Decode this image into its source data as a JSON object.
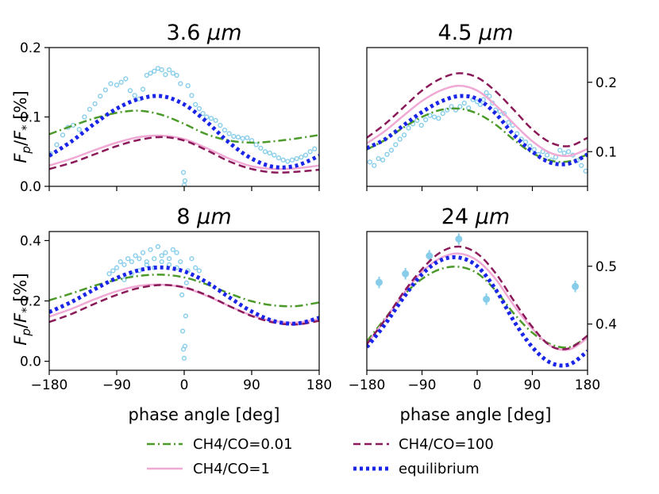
{
  "chart_data": [
    {
      "type": "line",
      "title": "3.6 μm",
      "title_number": "3.6",
      "title_unit": "μm",
      "xlabel": "",
      "ylabel": "F_p/F_* [%]",
      "xlim": [
        -180,
        180
      ],
      "ylim": [
        0.0,
        0.2
      ],
      "xticks": [
        -180,
        -90,
        0,
        90,
        180
      ],
      "yticks": [
        0.0,
        0.1,
        0.2
      ],
      "ytick_labels": [
        "0.0",
        "0.1",
        "0.2"
      ],
      "yaxis_side": "left",
      "series": [
        {
          "name": "CH4/CO=0.01",
          "x": [
            -180,
            -150,
            -120,
            -90,
            -60,
            -30,
            0,
            30,
            60,
            90,
            120,
            150,
            180
          ],
          "y": [
            0.075,
            0.087,
            0.098,
            0.106,
            0.109,
            0.103,
            0.09,
            0.075,
            0.066,
            0.063,
            0.065,
            0.069,
            0.074
          ]
        },
        {
          "name": "CH4/CO=1",
          "x": [
            -180,
            -150,
            -120,
            -90,
            -60,
            -30,
            0,
            30,
            60,
            90,
            120,
            150,
            180
          ],
          "y": [
            0.03,
            0.04,
            0.052,
            0.063,
            0.071,
            0.073,
            0.068,
            0.055,
            0.04,
            0.029,
            0.025,
            0.026,
            0.03
          ]
        },
        {
          "name": "CH4/CO=100",
          "x": [
            -180,
            -150,
            -120,
            -90,
            -60,
            -30,
            0,
            30,
            60,
            90,
            120,
            150,
            180
          ],
          "y": [
            0.025,
            0.034,
            0.046,
            0.058,
            0.067,
            0.071,
            0.066,
            0.052,
            0.036,
            0.025,
            0.02,
            0.021,
            0.024
          ]
        },
        {
          "name": "equilibrium",
          "x": [
            -180,
            -150,
            -120,
            -90,
            -60,
            -30,
            0,
            30,
            60,
            90,
            120,
            150,
            180
          ],
          "y": [
            0.044,
            0.065,
            0.09,
            0.112,
            0.126,
            0.13,
            0.118,
            0.093,
            0.063,
            0.04,
            0.028,
            0.03,
            0.044
          ]
        }
      ],
      "observations": {
        "x": [
          -178,
          -170,
          -162,
          -155,
          -148,
          -140,
          -133,
          -126,
          -119,
          -112,
          -105,
          -98,
          -90,
          -84,
          -78,
          -72,
          -66,
          -60,
          -55,
          -50,
          -45,
          -40,
          -35,
          -30,
          -25,
          -20,
          -15,
          -10,
          -5,
          0,
          -1,
          1,
          5,
          10,
          15,
          20,
          25,
          30,
          36,
          42,
          48,
          54,
          60,
          66,
          72,
          78,
          84,
          90,
          96,
          102,
          108,
          114,
          120,
          126,
          132,
          138,
          144,
          150,
          156,
          162,
          168,
          174
        ],
        "y": [
          0.047,
          0.06,
          0.074,
          0.085,
          0.088,
          0.082,
          0.1,
          0.111,
          0.119,
          0.13,
          0.139,
          0.148,
          0.146,
          0.15,
          0.155,
          0.138,
          0.131,
          0.126,
          0.14,
          0.16,
          0.163,
          0.166,
          0.17,
          0.168,
          0.161,
          0.168,
          0.163,
          0.16,
          0.148,
          0.002,
          0.02,
          0.008,
          0.145,
          0.131,
          0.118,
          0.112,
          0.105,
          0.1,
          0.098,
          0.095,
          0.088,
          0.081,
          0.076,
          0.072,
          0.071,
          0.069,
          0.07,
          0.066,
          0.06,
          0.055,
          0.05,
          0.048,
          0.045,
          0.041,
          0.038,
          0.036,
          0.038,
          0.04,
          0.042,
          0.045,
          0.05,
          0.054
        ]
      }
    },
    {
      "type": "line",
      "title": "4.5 μm",
      "title_number": "4.5",
      "title_unit": "μm",
      "xlabel": "phase angle [deg]",
      "ylabel": "",
      "xlim": [
        -180,
        180
      ],
      "ylim": [
        0.05,
        0.25
      ],
      "xticks": [
        -180,
        -90,
        0,
        90,
        180
      ],
      "yticks": [
        0.1,
        0.2
      ],
      "ytick_labels": [
        "0.1",
        "0.2"
      ],
      "yaxis_side": "right",
      "series": [
        {
          "name": "CH4/CO=0.01",
          "x": [
            -180,
            -150,
            -120,
            -90,
            -60,
            -30,
            0,
            30,
            60,
            90,
            120,
            150,
            180
          ],
          "y": [
            0.103,
            0.117,
            0.135,
            0.15,
            0.16,
            0.162,
            0.155,
            0.139,
            0.117,
            0.098,
            0.087,
            0.086,
            0.096
          ]
        },
        {
          "name": "CH4/CO=1",
          "x": [
            -180,
            -150,
            -120,
            -90,
            -60,
            -30,
            0,
            30,
            60,
            90,
            120,
            150,
            180
          ],
          "y": [
            0.112,
            0.13,
            0.152,
            0.173,
            0.188,
            0.195,
            0.188,
            0.167,
            0.14,
            0.115,
            0.098,
            0.094,
            0.104
          ]
        },
        {
          "name": "CH4/CO=100",
          "x": [
            -180,
            -150,
            -120,
            -90,
            -60,
            -30,
            0,
            30,
            60,
            90,
            120,
            150,
            180
          ],
          "y": [
            0.12,
            0.14,
            0.164,
            0.188,
            0.205,
            0.213,
            0.207,
            0.187,
            0.16,
            0.132,
            0.113,
            0.108,
            0.12
          ]
        },
        {
          "name": "equilibrium",
          "x": [
            -180,
            -150,
            -120,
            -90,
            -60,
            -30,
            0,
            30,
            60,
            90,
            120,
            150,
            180
          ],
          "y": [
            0.105,
            0.118,
            0.138,
            0.157,
            0.172,
            0.18,
            0.176,
            0.155,
            0.124,
            0.1,
            0.084,
            0.083,
            0.096
          ]
        }
      ],
      "observations": {
        "x": [
          -175,
          -168,
          -161,
          -154,
          -147,
          -140,
          -133,
          -126,
          -119,
          -112,
          -105,
          -98,
          -91,
          -84,
          -77,
          -70,
          -63,
          -56,
          -49,
          -42,
          -35,
          -28,
          -21,
          -14,
          -7,
          0,
          5,
          10,
          15,
          20,
          25,
          30,
          37,
          44,
          51,
          58,
          65,
          72,
          79,
          86,
          93,
          100,
          107,
          114,
          121,
          128,
          135,
          142,
          149,
          156,
          163,
          170,
          177
        ],
        "y": [
          0.085,
          0.08,
          0.09,
          0.088,
          0.096,
          0.102,
          0.11,
          0.118,
          0.124,
          0.134,
          0.14,
          0.145,
          0.138,
          0.146,
          0.152,
          0.15,
          0.148,
          0.155,
          0.16,
          0.165,
          0.16,
          0.165,
          0.17,
          0.163,
          0.175,
          0.172,
          0.168,
          0.175,
          0.185,
          0.18,
          0.17,
          0.16,
          0.158,
          0.155,
          0.142,
          0.138,
          0.126,
          0.118,
          0.114,
          0.108,
          0.103,
          0.096,
          0.1,
          0.095,
          0.088,
          0.092,
          0.102,
          0.098,
          0.1,
          0.095,
          0.087,
          0.08,
          0.072
        ]
      }
    },
    {
      "type": "line",
      "title": "8 μm",
      "title_number": "8",
      "title_unit": "μm",
      "xlabel": "phase angle [deg]",
      "ylabel": "F_p/F_* [%]",
      "xlim": [
        -180,
        180
      ],
      "ylim": [
        -0.03,
        0.43
      ],
      "xticks": [
        -180,
        -90,
        0,
        90,
        180
      ],
      "yticks": [
        0.0,
        0.2,
        0.4
      ],
      "ytick_labels": [
        "0.0",
        "0.2",
        "0.4"
      ],
      "yaxis_side": "left",
      "series": [
        {
          "name": "CH4/CO=0.01",
          "x": [
            -180,
            -150,
            -120,
            -90,
            -60,
            -30,
            0,
            30,
            60,
            90,
            120,
            150,
            180
          ],
          "y": [
            0.202,
            0.225,
            0.25,
            0.27,
            0.283,
            0.287,
            0.278,
            0.255,
            0.225,
            0.199,
            0.185,
            0.183,
            0.195
          ]
        },
        {
          "name": "CH4/CO=1",
          "x": [
            -180,
            -150,
            -120,
            -90,
            -60,
            -30,
            0,
            30,
            60,
            90,
            120,
            150,
            180
          ],
          "y": [
            0.148,
            0.174,
            0.205,
            0.232,
            0.25,
            0.254,
            0.244,
            0.217,
            0.183,
            0.152,
            0.133,
            0.128,
            0.14
          ]
        },
        {
          "name": "CH4/CO=100",
          "x": [
            -180,
            -150,
            -120,
            -90,
            -60,
            -30,
            0,
            30,
            60,
            90,
            120,
            150,
            180
          ],
          "y": [
            0.13,
            0.157,
            0.19,
            0.22,
            0.243,
            0.253,
            0.245,
            0.219,
            0.183,
            0.15,
            0.128,
            0.122,
            0.134
          ]
        },
        {
          "name": "equilibrium",
          "x": [
            -180,
            -150,
            -120,
            -90,
            -60,
            -30,
            0,
            30,
            60,
            90,
            120,
            150,
            180
          ],
          "y": [
            0.163,
            0.197,
            0.238,
            0.276,
            0.302,
            0.311,
            0.298,
            0.262,
            0.212,
            0.165,
            0.133,
            0.125,
            0.144
          ]
        }
      ],
      "observations": {
        "x": [
          -100,
          -95,
          -90,
          -85,
          -80,
          -75,
          -70,
          -65,
          -60,
          -55,
          -50,
          -45,
          -40,
          -35,
          -30,
          -25,
          -20,
          -15,
          -10,
          -5,
          -3,
          -2,
          -1,
          0,
          1,
          2,
          3,
          -80,
          -70,
          -60,
          -50,
          -40,
          -30,
          -20,
          -10,
          5,
          10,
          15,
          20
        ],
        "y": [
          0.29,
          0.3,
          0.31,
          0.33,
          0.32,
          0.34,
          0.33,
          0.35,
          0.34,
          0.36,
          0.33,
          0.37,
          0.34,
          0.38,
          0.35,
          0.36,
          0.34,
          0.37,
          0.36,
          0.33,
          0.22,
          0.1,
          0.04,
          0.01,
          0.05,
          0.15,
          0.26,
          0.27,
          0.29,
          0.3,
          0.32,
          0.31,
          0.33,
          0.32,
          0.31,
          0.3,
          0.34,
          0.31,
          0.3
        ]
      }
    },
    {
      "type": "line",
      "title": "24 μm",
      "title_number": "24",
      "title_unit": "μm",
      "xlabel": "phase angle [deg]",
      "ylabel": "",
      "xlim": [
        -180,
        180
      ],
      "ylim": [
        0.32,
        0.56
      ],
      "xticks": [
        -180,
        -90,
        0,
        90,
        180
      ],
      "yticks": [
        0.4,
        0.5
      ],
      "ytick_labels": [
        "0.4",
        "0.5"
      ],
      "yaxis_side": "right",
      "series": [
        {
          "name": "CH4/CO=0.01",
          "x": [
            -180,
            -150,
            -120,
            -90,
            -60,
            -30,
            0,
            30,
            60,
            90,
            120,
            150,
            180
          ],
          "y": [
            0.37,
            0.41,
            0.45,
            0.478,
            0.495,
            0.499,
            0.488,
            0.458,
            0.418,
            0.385,
            0.365,
            0.36,
            0.378
          ]
        },
        {
          "name": "CH4/CO=1",
          "x": [
            -180,
            -150,
            -120,
            -90,
            -60,
            -30,
            0,
            30,
            60,
            90,
            120,
            150,
            180
          ],
          "y": [
            0.365,
            0.408,
            0.453,
            0.49,
            0.514,
            0.522,
            0.51,
            0.478,
            0.432,
            0.392,
            0.362,
            0.356,
            0.376
          ]
        },
        {
          "name": "CH4/CO=100",
          "x": [
            -180,
            -150,
            -120,
            -90,
            -60,
            -30,
            0,
            30,
            60,
            90,
            120,
            150,
            180
          ],
          "y": [
            0.365,
            0.408,
            0.455,
            0.495,
            0.524,
            0.534,
            0.522,
            0.488,
            0.44,
            0.395,
            0.362,
            0.358,
            0.38
          ]
        },
        {
          "name": "equilibrium",
          "x": [
            -180,
            -150,
            -120,
            -90,
            -60,
            -30,
            0,
            30,
            60,
            90,
            120,
            150,
            180
          ],
          "y": [
            0.36,
            0.4,
            0.446,
            0.486,
            0.51,
            0.515,
            0.5,
            0.46,
            0.405,
            0.36,
            0.333,
            0.33,
            0.353
          ]
        }
      ],
      "observations": {
        "x": [
          -160,
          -117,
          -78,
          -30,
          15,
          160
        ],
        "y": [
          0.472,
          0.487,
          0.518,
          0.547,
          0.443,
          0.465
        ],
        "err": [
          0.01,
          0.01,
          0.01,
          0.01,
          0.01,
          0.01
        ]
      }
    }
  ],
  "legend": {
    "items": [
      {
        "label": "CH4/CO=0.01",
        "color": "#4b9a2a",
        "style": "dashdot"
      },
      {
        "label": "CH4/CO=100",
        "color": "#8b1a5a",
        "style": "dashed"
      },
      {
        "label": "CH4/CO=1",
        "color": "#f0a8d4",
        "style": "solid"
      },
      {
        "label": "equilibrium",
        "color": "#1a25e8",
        "style": "dotted"
      }
    ]
  },
  "colors": {
    "observation": "#87cdea",
    "axis": "#000000"
  }
}
